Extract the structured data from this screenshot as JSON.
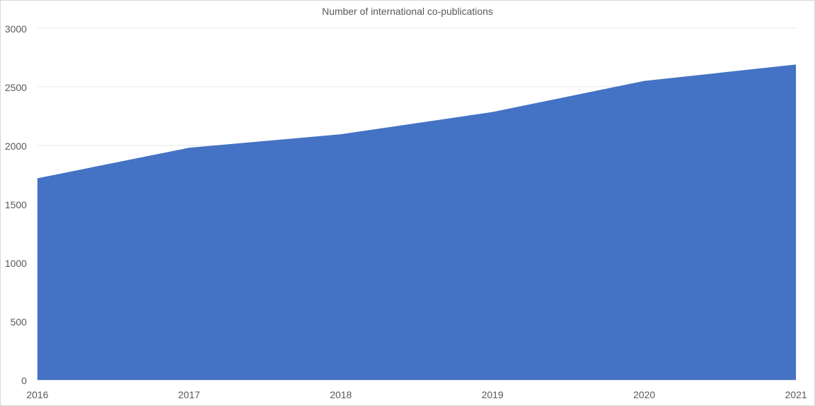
{
  "chart_data": {
    "type": "area",
    "title": "Number of international co-publications",
    "xlabel": "",
    "ylabel": "",
    "categories": [
      "2016",
      "2017",
      "2018",
      "2019",
      "2020",
      "2021"
    ],
    "values": [
      1720,
      1980,
      2095,
      2285,
      2550,
      2690
    ],
    "ylim": [
      0,
      3000
    ],
    "yticks": [
      0,
      500,
      1000,
      1500,
      2000,
      2500,
      3000
    ],
    "grid": true,
    "legend": "none",
    "colors": {
      "fill": "#4472C4",
      "grid": "#e6e6e6"
    }
  }
}
